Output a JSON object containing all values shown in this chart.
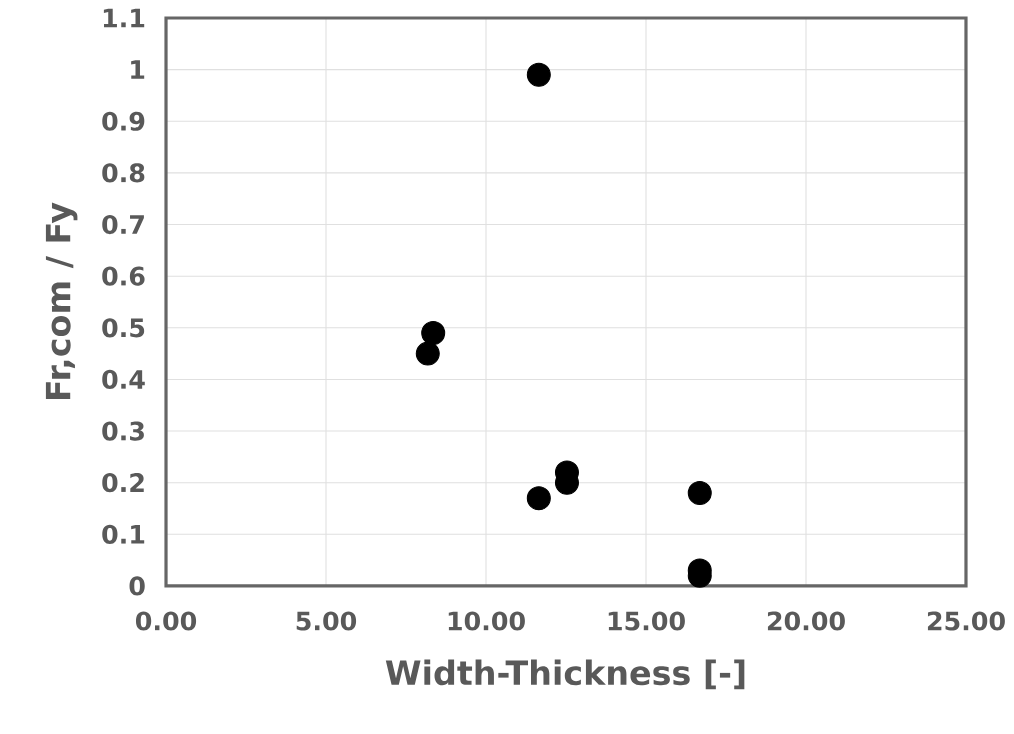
{
  "chart_data": {
    "type": "scatter",
    "xlabel": "Width-Thickness [-]",
    "ylabel": "Fr,com / Fy",
    "x": [
      11.65,
      8.35,
      8.18,
      12.53,
      12.53,
      11.65,
      16.68,
      16.68,
      16.68
    ],
    "values": [
      0.99,
      0.49,
      0.45,
      0.22,
      0.2,
      0.17,
      0.18,
      0.03,
      0.02
    ],
    "color": "#000000",
    "marker": "circle",
    "grid": true,
    "xlim": [
      0,
      25
    ],
    "ylim": [
      0,
      1.1
    ],
    "xticks": [
      {
        "value": 0,
        "label": "0.00"
      },
      {
        "value": 5,
        "label": "5.00"
      },
      {
        "value": 10,
        "label": "10.00"
      },
      {
        "value": 15,
        "label": "15.00"
      },
      {
        "value": 20,
        "label": "20.00"
      },
      {
        "value": 25,
        "label": "25.00"
      }
    ],
    "yticks": [
      0,
      0.1,
      0.2,
      0.3,
      0.4,
      0.5,
      0.6,
      0.7,
      0.8,
      0.9,
      1,
      1.1
    ]
  }
}
